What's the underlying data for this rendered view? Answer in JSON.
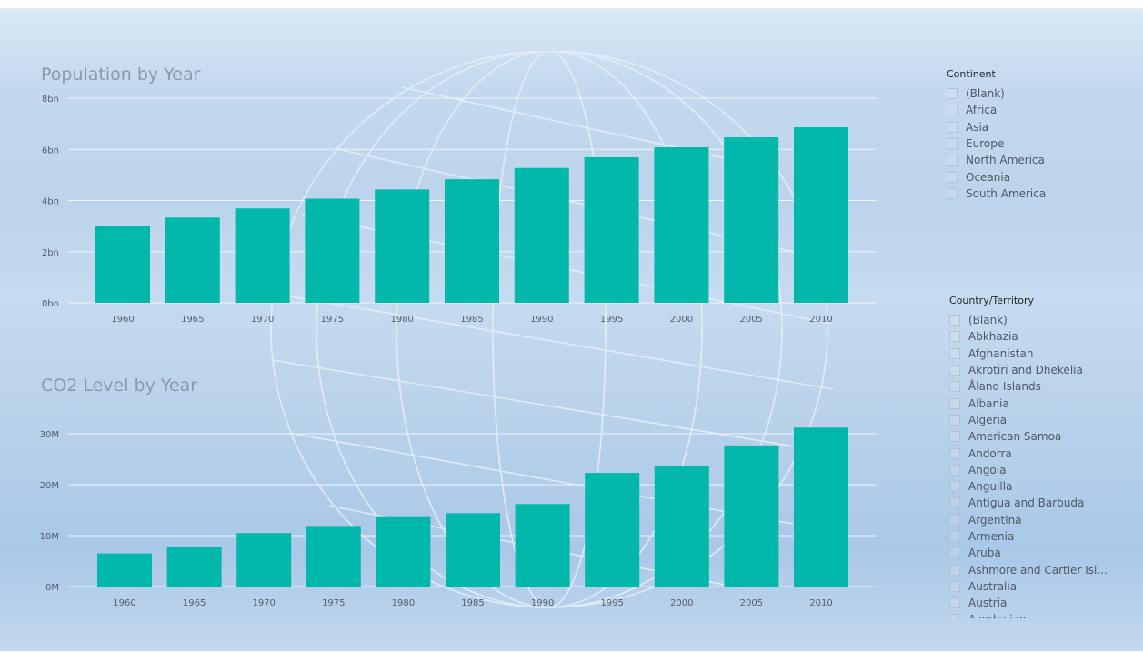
{
  "colors": {
    "bar": "#01b8aa"
  },
  "chart_data": [
    {
      "type": "bar",
      "title": "Population by Year",
      "categories": [
        "1960",
        "1965",
        "1970",
        "1975",
        "1980",
        "1985",
        "1990",
        "1995",
        "2000",
        "2005",
        "2010"
      ],
      "values": [
        3.0,
        3.33,
        3.69,
        4.07,
        4.43,
        4.83,
        5.27,
        5.69,
        6.08,
        6.47,
        6.86
      ],
      "unit": "bn",
      "yticks": [
        "0bn",
        "2bn",
        "4bn",
        "6bn",
        "8bn"
      ],
      "ylim": [
        0,
        8
      ]
    },
    {
      "type": "bar",
      "title": "CO2 Level by Year",
      "categories": [
        "1960",
        "1965",
        "1970",
        "1975",
        "1980",
        "1985",
        "1990",
        "1995",
        "2000",
        "2005",
        "2010"
      ],
      "values": [
        6.5,
        7.7,
        10.5,
        11.9,
        13.8,
        14.4,
        16.2,
        22.3,
        23.6,
        27.7,
        31.2
      ],
      "unit": "M",
      "yticks": [
        "0M",
        "10M",
        "20M",
        "30M"
      ],
      "ylim": [
        0,
        35
      ]
    }
  ],
  "slicers": {
    "continent": {
      "title": "Continent",
      "items": [
        "(Blank)",
        "Africa",
        "Asia",
        "Europe",
        "North America",
        "Oceania",
        "South America"
      ]
    },
    "country": {
      "title": "Country/Territory",
      "items": [
        "(Blank)",
        "Abkhazia",
        "Afghanistan",
        "Akrotiri and Dhekelia",
        "Åland Islands",
        "Albania",
        "Algeria",
        "American Samoa",
        "Andorra",
        "Angola",
        "Anguilla",
        "Antigua and Barbuda",
        "Argentina",
        "Armenia",
        "Aruba",
        "Ashmore and Cartier Isl...",
        "Australia",
        "Austria",
        "Azerbaijan"
      ]
    }
  }
}
